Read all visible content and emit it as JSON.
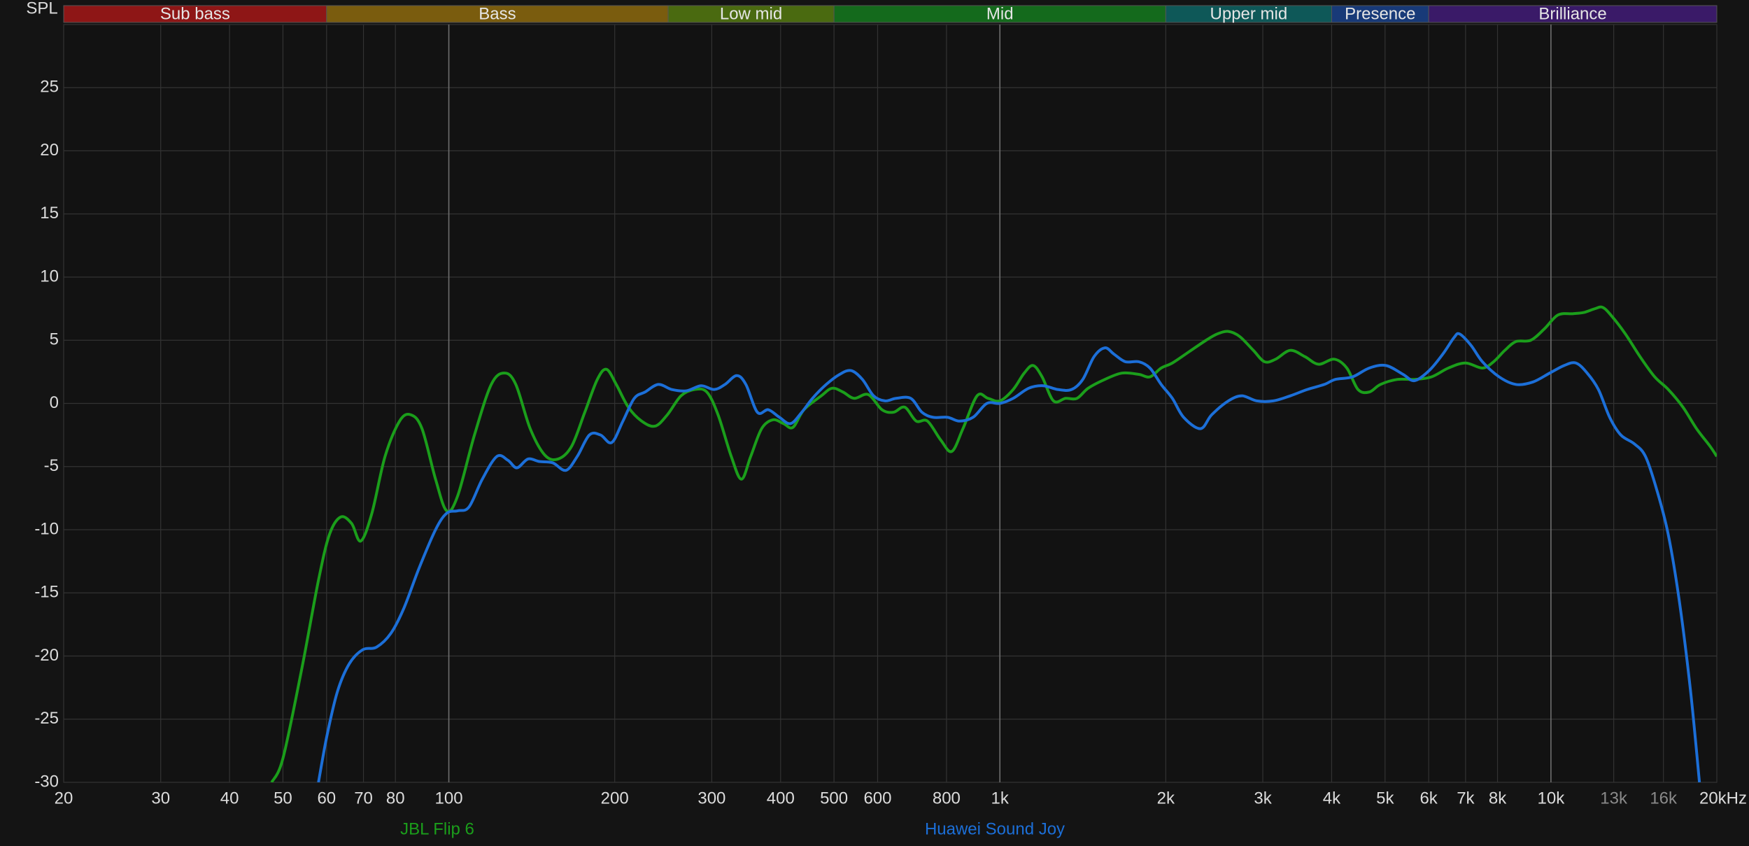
{
  "chart_data": {
    "type": "line",
    "ylabel": "SPL",
    "xscale": "log",
    "xlim": [
      20,
      20000
    ],
    "ylim": [
      -30,
      30
    ],
    "xticks": [
      20,
      30,
      40,
      50,
      60,
      70,
      80,
      100,
      200,
      300,
      400,
      500,
      600,
      800,
      {
        "value": 1000,
        "label": "1k"
      },
      {
        "value": 2000,
        "label": "2k"
      },
      {
        "value": 3000,
        "label": "3k"
      },
      {
        "value": 4000,
        "label": "4k"
      },
      {
        "value": 5000,
        "label": "5k"
      },
      {
        "value": 6000,
        "label": "6k"
      },
      {
        "value": 7000,
        "label": "7k"
      },
      {
        "value": 8000,
        "label": "8k"
      },
      {
        "value": 10000,
        "label": "10k"
      },
      {
        "value": 13000,
        "label": "13k",
        "color": "#8a8a8a"
      },
      {
        "value": 16000,
        "label": "16k",
        "color": "#8a8a8a"
      },
      {
        "value": 20000,
        "label": "20kHz"
      }
    ],
    "yticks": [
      -30,
      -25,
      -20,
      -15,
      -10,
      -5,
      0,
      5,
      10,
      15,
      20,
      25
    ],
    "grid": true,
    "bands": [
      {
        "name": "Sub bass",
        "range": [
          20,
          60
        ],
        "color": "#8e1616"
      },
      {
        "name": "Bass",
        "range": [
          60,
          250
        ],
        "color": "#7a5c0e"
      },
      {
        "name": "Low mid",
        "range": [
          250,
          500
        ],
        "color": "#4a6a10"
      },
      {
        "name": "Mid",
        "range": [
          500,
          2000
        ],
        "color": "#146a1c"
      },
      {
        "name": "Upper mid",
        "range": [
          2000,
          4000
        ],
        "color": "#0e5858"
      },
      {
        "name": "Presence",
        "range": [
          4000,
          6000
        ],
        "color": "#183a78"
      },
      {
        "name": "Brilliance",
        "range": [
          6000,
          20000
        ],
        "color": "#3a1a68"
      }
    ],
    "series": [
      {
        "name": "JBL Flip 6",
        "color": "#1b9e1b",
        "x": [
          47.7,
          50,
          54.1,
          58,
          60.7,
          63.6,
          66.6,
          69.2,
          72.5,
          76.6,
          81.4,
          85.3,
          89.4,
          94.6,
          99.1,
          103.8,
          111.3,
          119.4,
          126.2,
          132.3,
          140.5,
          149.4,
          157.9,
          167,
          176.5,
          186,
          193.3,
          201.3,
          211.7,
          223.8,
          236.7,
          249.2,
          263.8,
          279.1,
          293.9,
          308,
          325.5,
          339.6,
          353,
          369.5,
          387.3,
          405,
          421,
          441,
          474,
          496,
          519,
          544,
          577,
          611,
          641,
          672,
          705,
          739,
          781,
          818,
          857,
          909,
          952,
          1000,
          1057,
          1107,
          1149,
          1193,
          1251,
          1316,
          1380,
          1446,
          1551,
          1665,
          1787,
          1872,
          1962,
          2056,
          2206,
          2367,
          2480,
          2598,
          2723,
          2884,
          3021,
          3165,
          3365,
          3578,
          3786,
          4044,
          4262,
          4466,
          4680,
          4904,
          5266,
          5653,
          6069,
          6515,
          6995,
          7510,
          7870,
          8247,
          8642,
          9191,
          9728,
          10297,
          10946,
          11471,
          12021,
          12418,
          12898,
          13649,
          14512,
          15430,
          16330,
          17363,
          18376,
          19448,
          20000
        ],
        "values": [
          -30,
          -28.1,
          -21,
          -14,
          -10.4,
          -9,
          -9.5,
          -10.9,
          -8.7,
          -4.2,
          -1.4,
          -0.9,
          -2,
          -6,
          -8.5,
          -7.3,
          -2.5,
          1.5,
          2.4,
          1.5,
          -2,
          -4.1,
          -4.4,
          -3.4,
          -0.7,
          1.9,
          2.7,
          1.5,
          -0.3,
          -1.4,
          -1.8,
          -0.9,
          0.6,
          1.1,
          0.9,
          -0.9,
          -4.2,
          -6,
          -4.2,
          -2,
          -1.3,
          -1.6,
          -1.9,
          -0.5,
          0.6,
          1.2,
          0.9,
          0.4,
          0.7,
          -0.5,
          -0.7,
          -0.3,
          -1.4,
          -1.4,
          -2.9,
          -3.8,
          -2,
          0.6,
          0.4,
          0.2,
          1.1,
          2.4,
          3,
          2.1,
          0.2,
          0.4,
          0.4,
          1.2,
          1.9,
          2.4,
          2.3,
          2.1,
          2.8,
          3.2,
          4.1,
          5,
          5.5,
          5.7,
          5.3,
          4.2,
          3.3,
          3.5,
          4.2,
          3.7,
          3.1,
          3.5,
          2.8,
          1.1,
          0.9,
          1.5,
          1.9,
          1.9,
          2.1,
          2.8,
          3.2,
          2.8,
          3.3,
          4.2,
          4.9,
          5,
          5.9,
          7,
          7.1,
          7.2,
          7.5,
          7.6,
          6.9,
          5.5,
          3.7,
          2.1,
          1.1,
          -0.3,
          -2,
          -3.4,
          -4.2
        ]
      },
      {
        "name": "Huawei Sound Joy",
        "color": "#1c6fd8",
        "x": [
          58,
          60.1,
          62.8,
          66,
          69.8,
          73.9,
          78.5,
          82.9,
          88.2,
          94.6,
          99.1,
          103.8,
          108.8,
          115,
          122.2,
          128,
          132.9,
          139.2,
          145.9,
          154.3,
          163.1,
          171,
          179.9,
          188.5,
          197.5,
          207,
          217,
          227,
          240,
          254,
          270,
          287,
          303,
          317,
          333,
          346,
          363,
          380,
          398,
          417,
          437,
          457,
          484,
          512,
          537,
          563,
          590,
          619,
          648,
          689,
          722,
          757,
          804,
          844,
          894,
          947,
          1000,
          1057,
          1128,
          1198,
          1274,
          1349,
          1414,
          1482,
          1551,
          1611,
          1689,
          1787,
          1872,
          1962,
          2056,
          2155,
          2312,
          2423,
          2598,
          2750,
          2925,
          3135,
          3365,
          3612,
          3879,
          4063,
          4364,
          4680,
          5021,
          5391,
          5653,
          6012,
          6364,
          6667,
          6825,
          7160,
          7510,
          8056,
          8642,
          9281,
          9947,
          10566,
          11100,
          11636,
          12195,
          12781,
          13392,
          14167,
          14844,
          15575,
          16330,
          17107,
          17924,
          18600
        ],
        "values": [
          -30,
          -26.3,
          -22.8,
          -20.6,
          -19.5,
          -19.3,
          -18.2,
          -16.2,
          -13.1,
          -10,
          -8.7,
          -8.5,
          -8.2,
          -6,
          -4.2,
          -4.5,
          -5.1,
          -4.4,
          -4.6,
          -4.7,
          -5.3,
          -4.2,
          -2.5,
          -2.5,
          -3.1,
          -1.4,
          0.4,
          0.9,
          1.5,
          1.1,
          1,
          1.4,
          1.1,
          1.5,
          2.2,
          1.5,
          -0.7,
          -0.5,
          -1.1,
          -1.6,
          -0.7,
          0.4,
          1.5,
          2.3,
          2.6,
          1.9,
          0.6,
          0.2,
          0.4,
          0.4,
          -0.7,
          -1.1,
          -1.1,
          -1.4,
          -1.1,
          0,
          0,
          0.4,
          1.2,
          1.4,
          1.1,
          1.1,
          1.9,
          3.7,
          4.4,
          3.9,
          3.3,
          3.3,
          2.8,
          1.5,
          0.4,
          -1.1,
          -2,
          -0.9,
          0.2,
          0.6,
          0.2,
          0.2,
          0.6,
          1.1,
          1.5,
          1.9,
          2.1,
          2.8,
          3,
          2.3,
          1.8,
          2.6,
          3.9,
          5.2,
          5.5,
          4.6,
          3.3,
          2.1,
          1.5,
          1.7,
          2.4,
          3,
          3.2,
          2.4,
          1.1,
          -1.1,
          -2.5,
          -3.2,
          -4.2,
          -6.9,
          -10.4,
          -15.7,
          -22.8,
          -30
        ]
      }
    ]
  }
}
